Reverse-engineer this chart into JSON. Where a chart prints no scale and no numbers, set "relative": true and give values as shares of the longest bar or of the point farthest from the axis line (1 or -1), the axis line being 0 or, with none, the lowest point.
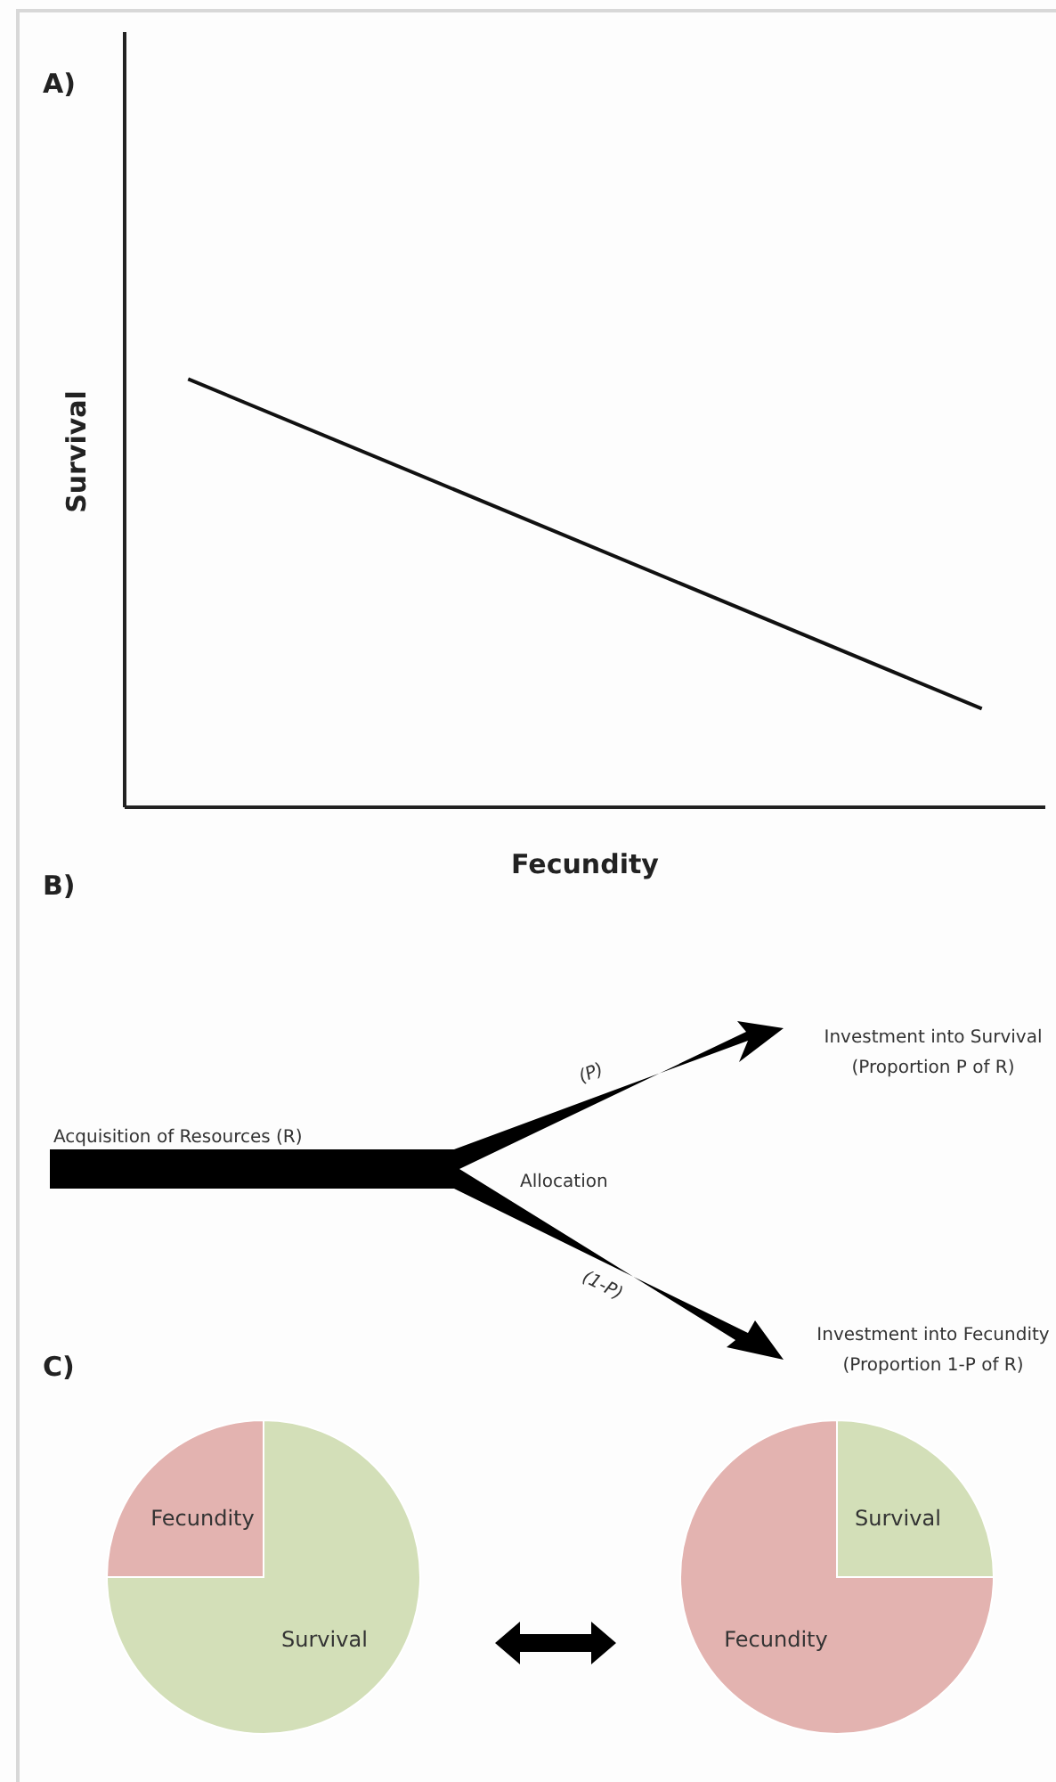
{
  "chart_data": [
    {
      "type": "line",
      "title": "A)",
      "xlabel": "Fecundity",
      "ylabel": "Survival",
      "relative": true,
      "categories": [
        null,
        null
      ],
      "series": [
        {
          "color": "#111111",
          "values": [
            1,
            0.23
          ]
        }
      ]
    },
    {
      "type": "other",
      "title": "B)",
      "annotations": [
        "Acquisition of Resources (R)",
        "Allocation",
        "(P)",
        "(1-P)",
        "Investment into Survival\n(Proportion P of R)",
        "Investment into Fecundity\n(Proportion 1-P of R)"
      ]
    },
    {
      "type": "pie",
      "title": "C)",
      "categories": [
        "Fecundity",
        "Survival"
      ],
      "values": [
        25,
        75
      ],
      "colors": [
        "#e3b3b0",
        "#d3dfb8"
      ]
    },
    {
      "type": "pie",
      "categories": [
        "Survival",
        "Fecundity"
      ],
      "values": [
        25,
        75
      ],
      "colors": [
        "#d3dfb8",
        "#e3b3b0"
      ]
    }
  ]
}
